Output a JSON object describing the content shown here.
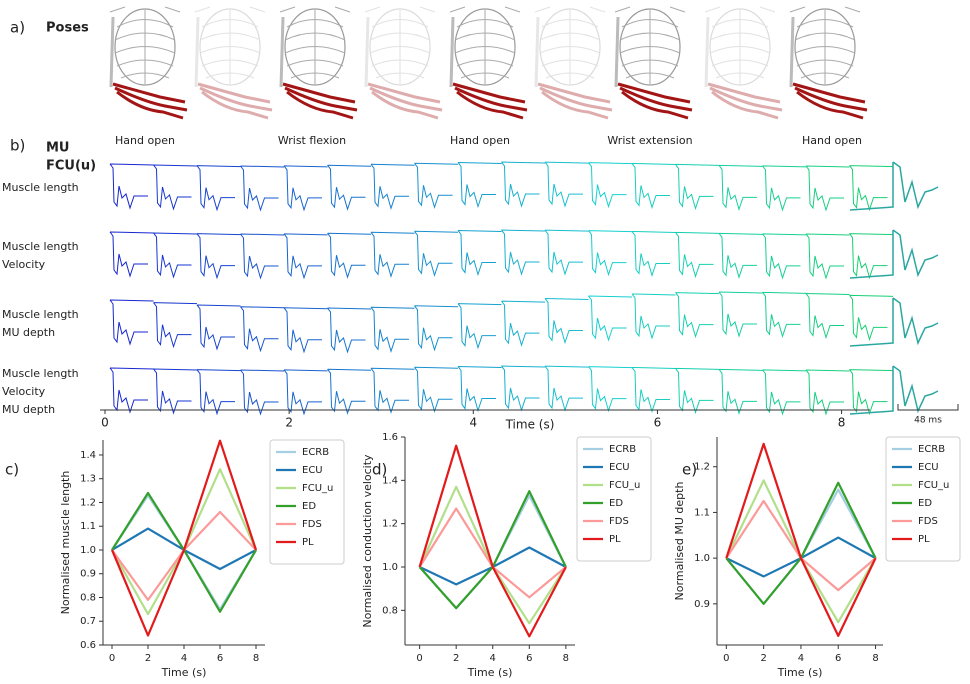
{
  "panel_a": {
    "label": "a)",
    "title": "Poses",
    "pose_labels": [
      "Hand open",
      "Wrist flexion",
      "Hand open",
      "Wrist extension",
      "Hand open"
    ]
  },
  "panel_b": {
    "label": "b)",
    "title_lines": [
      "MU",
      "FCU(u)"
    ],
    "rows": [
      [
        "Muscle length"
      ],
      [
        "Muscle length",
        "Velocity"
      ],
      [
        "Muscle length",
        "MU depth"
      ],
      [
        "Muscle length",
        "Velocity",
        "MU depth"
      ]
    ],
    "xlabel": "Time (s)",
    "xlim": [
      0,
      8.2
    ],
    "xticks": [
      0,
      2,
      4,
      6,
      8
    ],
    "scale_bar": "48 ms"
  },
  "chart_data": [
    {
      "type": "line",
      "label": "c)",
      "xlabel": "Time (s)",
      "ylabel": "Normalised muscle length",
      "x": [
        0,
        2,
        4,
        6,
        8
      ],
      "xlim": [
        -0.5,
        8.5
      ],
      "xticks": [
        0,
        2,
        4,
        6,
        8
      ],
      "ylim": [
        0.6,
        1.463
      ],
      "yticks": [
        0.6,
        0.7,
        0.8,
        0.9,
        {
          "value": 1,
          "label": "1.0"
        },
        1.1,
        1.2,
        1.3,
        1.4
      ],
      "series": [
        {
          "name": "ECRB",
          "color": "#a6cee3",
          "values": [
            1,
            1.23,
            1,
            0.75,
            1
          ]
        },
        {
          "name": "ECU",
          "color": "#1f78b4",
          "values": [
            1,
            1.09,
            1,
            0.92,
            1
          ]
        },
        {
          "name": "FCU_u",
          "color": "#b2df8a",
          "values": [
            1,
            0.73,
            1,
            1.34,
            1
          ]
        },
        {
          "name": "ED",
          "color": "#33a02c",
          "values": [
            1,
            1.24,
            1,
            0.74,
            1
          ]
        },
        {
          "name": "FDS",
          "color": "#fb9a99",
          "values": [
            1,
            0.79,
            1,
            1.16,
            1
          ]
        },
        {
          "name": "PL",
          "color": "#e31a1c",
          "values": [
            1,
            0.64,
            1,
            1.46,
            1
          ]
        }
      ]
    },
    {
      "type": "line",
      "label": "d)",
      "xlabel": "Time (s)",
      "ylabel": "Normalised conduction velocity",
      "x": [
        0,
        2,
        4,
        6,
        8
      ],
      "xlim": [
        -0.8,
        8.5
      ],
      "xticks": [
        0,
        2,
        4,
        6,
        8
      ],
      "ylim": [
        0.64,
        1.6
      ],
      "yticks": [
        0.8,
        {
          "value": 1,
          "label": "1.0"
        },
        1.2,
        1.4,
        1.6
      ],
      "series": [
        {
          "name": "ECRB",
          "color": "#a6cee3",
          "values": [
            1,
            0.81,
            1,
            1.33,
            1
          ]
        },
        {
          "name": "ECU",
          "color": "#1f78b4",
          "values": [
            1,
            0.92,
            1,
            1.09,
            1
          ]
        },
        {
          "name": "FCU_u",
          "color": "#b2df8a",
          "values": [
            1,
            1.37,
            1,
            0.74,
            1
          ]
        },
        {
          "name": "ED",
          "color": "#33a02c",
          "values": [
            1,
            0.81,
            1,
            1.35,
            1
          ]
        },
        {
          "name": "FDS",
          "color": "#fb9a99",
          "values": [
            1,
            1.27,
            1,
            0.86,
            1
          ]
        },
        {
          "name": "PL",
          "color": "#e31a1c",
          "values": [
            1,
            1.56,
            1,
            0.68,
            1
          ]
        }
      ]
    },
    {
      "type": "line",
      "label": "e)",
      "xlabel": "Time (s)",
      "ylabel": "Normalised MU depth",
      "x": [
        0,
        2,
        4,
        6,
        8
      ],
      "xlim": [
        -0.5,
        8.4
      ],
      "xticks": [
        0,
        2,
        4,
        6,
        8
      ],
      "ylim": [
        0.81,
        1.265
      ],
      "yticks": [
        0.9,
        {
          "value": 1,
          "label": "1.0"
        },
        1.1,
        1.2
      ],
      "series": [
        {
          "name": "ECRB",
          "color": "#a6cee3",
          "values": [
            1,
            0.9,
            1,
            1.15,
            1
          ]
        },
        {
          "name": "ECU",
          "color": "#1f78b4",
          "values": [
            1,
            0.96,
            1,
            1.045,
            1
          ]
        },
        {
          "name": "FCU_u",
          "color": "#b2df8a",
          "values": [
            1,
            1.17,
            1,
            0.86,
            1
          ]
        },
        {
          "name": "ED",
          "color": "#33a02c",
          "values": [
            1,
            0.9,
            1,
            1.165,
            1
          ]
        },
        {
          "name": "FDS",
          "color": "#fb9a99",
          "values": [
            1,
            1.125,
            1,
            0.93,
            1
          ]
        },
        {
          "name": "PL",
          "color": "#e31a1c",
          "values": [
            1,
            1.25,
            1,
            0.83,
            1
          ]
        }
      ]
    }
  ]
}
